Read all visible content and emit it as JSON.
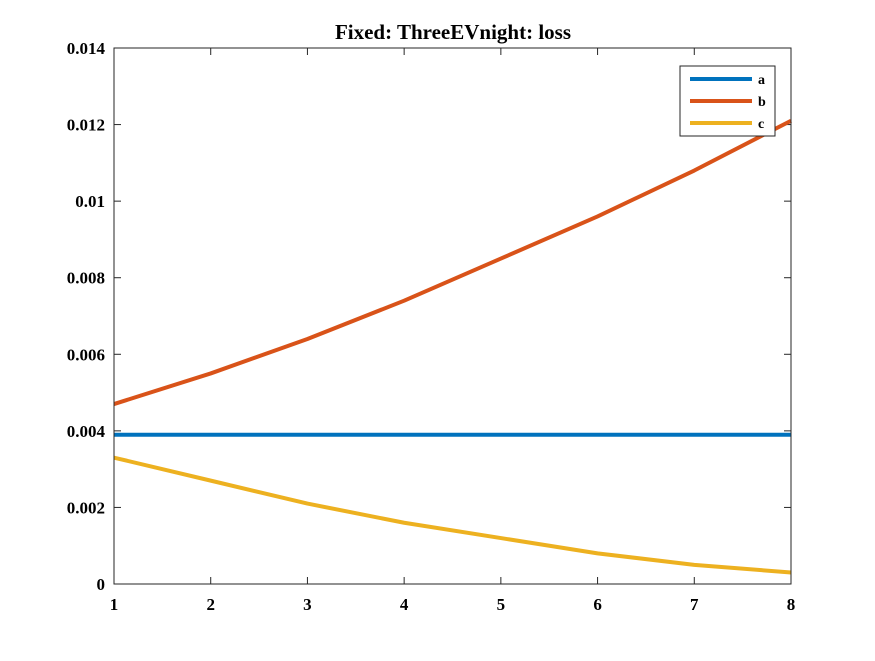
{
  "chart_data": {
    "type": "line",
    "title": "Fixed: ThreeEVnight: loss",
    "xlabel": "",
    "ylabel": "",
    "xlim": [
      1,
      8
    ],
    "ylim": [
      0,
      0.014
    ],
    "x_ticks": [
      "1",
      "2",
      "3",
      "4",
      "5",
      "6",
      "7",
      "8"
    ],
    "y_ticks": [
      "0",
      "0.002",
      "0.004",
      "0.006",
      "0.008",
      "0.01",
      "0.012",
      "0.014"
    ],
    "grid": false,
    "legend_position": "top-right",
    "x": [
      1,
      2,
      3,
      4,
      5,
      6,
      7,
      8
    ],
    "series": [
      {
        "name": "a",
        "color": "#0072BD",
        "values": [
          0.0039,
          0.0039,
          0.0039,
          0.0039,
          0.0039,
          0.0039,
          0.0039,
          0.0039
        ]
      },
      {
        "name": "b",
        "color": "#D95319",
        "values": [
          0.0047,
          0.0055,
          0.0064,
          0.0074,
          0.0085,
          0.0096,
          0.0108,
          0.0121
        ]
      },
      {
        "name": "c",
        "color": "#EDB120",
        "values": [
          0.0033,
          0.0027,
          0.0021,
          0.0016,
          0.0012,
          0.0008,
          0.0005,
          0.0003
        ]
      }
    ]
  }
}
